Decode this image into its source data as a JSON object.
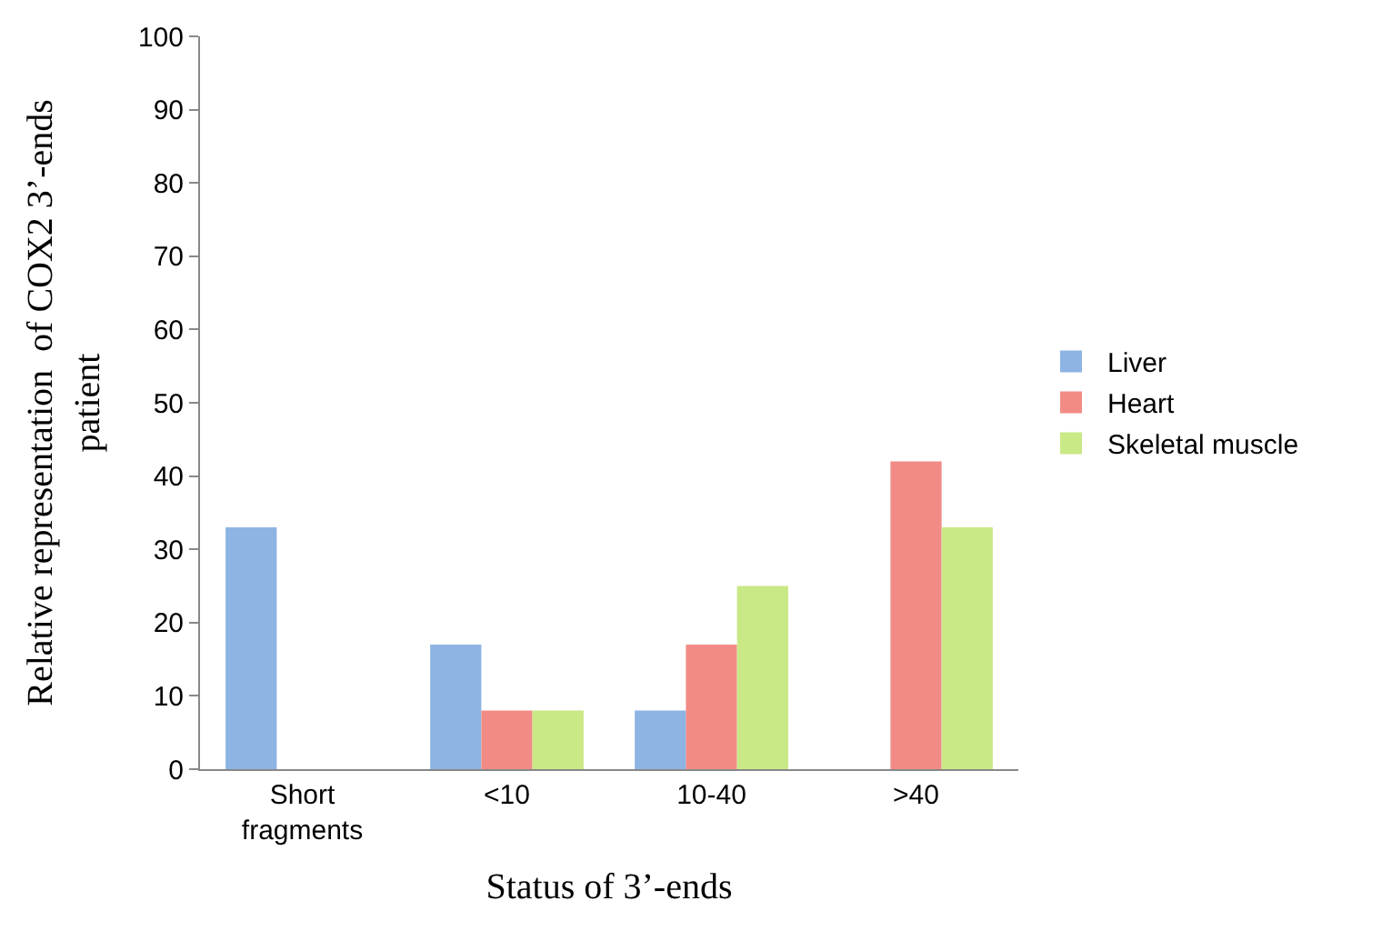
{
  "chart_data": {
    "type": "bar",
    "xlabel": "Status of 3’-ends",
    "ylabel": "Relative representation  of COX2 3’-ends\npatient",
    "categories": [
      "Short\nfragments",
      "<10",
      "10-40",
      ">40"
    ],
    "series": [
      {
        "name": "Liver",
        "color": "#8db4e2",
        "values": [
          33,
          17,
          8,
          0
        ]
      },
      {
        "name": "Heart",
        "color": "#f28b86",
        "values": [
          0,
          8,
          17,
          42
        ]
      },
      {
        "name": "Skeletal muscle",
        "color": "#c9e886",
        "values": [
          0,
          8,
          25,
          33
        ]
      }
    ],
    "ylim": [
      0,
      100
    ],
    "yticks": [
      0,
      10,
      20,
      30,
      40,
      50,
      60,
      70,
      80,
      90,
      100
    ],
    "grid": false,
    "legend": "right"
  }
}
